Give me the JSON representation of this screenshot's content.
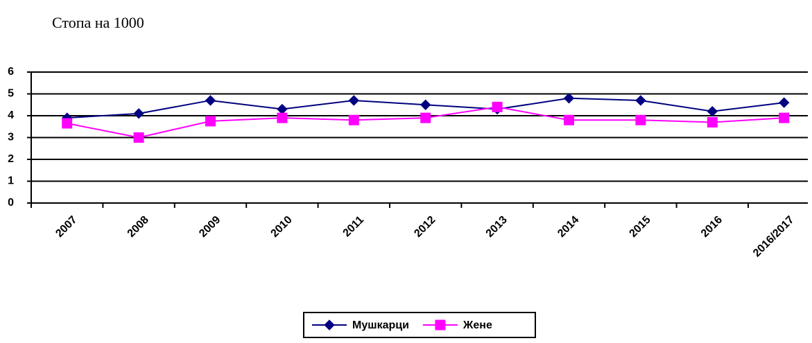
{
  "chart_data": {
    "type": "line",
    "title": "Стопа на 1000",
    "categories": [
      "2007",
      "2008",
      "2009",
      "2010",
      "2011",
      "2012",
      "2013",
      "2014",
      "2015",
      "2016",
      "2016/2017"
    ],
    "series": [
      {
        "name": "Мушкарци",
        "color": "#000080",
        "marker": "diamond",
        "values": [
          3.9,
          4.1,
          4.7,
          4.3,
          4.7,
          4.5,
          4.3,
          4.8,
          4.7,
          4.2,
          4.6
        ]
      },
      {
        "name": "Жене",
        "color": "#ff00ff",
        "marker": "square",
        "values": [
          3.65,
          3.0,
          3.75,
          3.9,
          3.8,
          3.9,
          4.4,
          3.8,
          3.8,
          3.7,
          3.9
        ]
      }
    ],
    "ylim": [
      0,
      6
    ],
    "yticks": [
      0,
      1,
      2,
      3,
      4,
      5,
      6
    ],
    "grid": true,
    "legend": "bottom"
  }
}
